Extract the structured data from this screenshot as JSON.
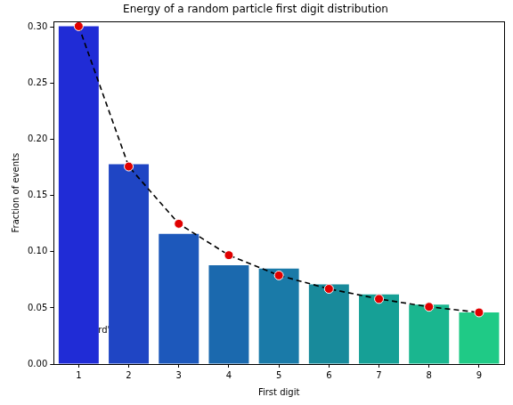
{
  "chart_data": {
    "type": "bar",
    "title": "Energy of a random particle first digit distribution",
    "x_label": "First digit",
    "y_label": "Fraction of events",
    "categories": [
      "1",
      "2",
      "3",
      "4",
      "5",
      "6",
      "7",
      "8",
      "9"
    ],
    "series": [
      {
        "type": "bar",
        "colors": [
          "#202cd6",
          "#1f45c4",
          "#1d58bb",
          "#1b69ae",
          "#1a7aa8",
          "#188a9b",
          "#16a096",
          "#1ab68f",
          "#1fca86"
        ],
        "values": [
          0.301,
          0.178,
          0.116,
          0.088,
          0.085,
          0.071,
          0.062,
          0.053,
          0.046
        ]
      },
      {
        "type": "line",
        "color": "#000000",
        "line_style": "dashed",
        "values": [
          0.301,
          0.176,
          0.125,
          0.097,
          0.079,
          0.067,
          0.058,
          0.051,
          0.046
        ]
      },
      {
        "type": "scatter",
        "name": "Benford's Law",
        "color": "#e00000",
        "marker": "circle",
        "values": [
          0.301,
          0.176,
          0.125,
          0.097,
          0.079,
          0.067,
          0.058,
          0.051,
          0.046
        ]
      }
    ],
    "ylim": [
      0,
      0.305
    ],
    "yticks": [
      {
        "value": 0,
        "label": "0.00"
      },
      {
        "value": 0.05,
        "label": "0.05"
      },
      {
        "value": 0.1,
        "label": "0.10"
      },
      {
        "value": 0.15,
        "label": "0.15"
      },
      {
        "value": 0.2,
        "label": "0.20"
      },
      {
        "value": 0.25,
        "label": "0.25"
      },
      {
        "value": 0.3,
        "label": "0.30"
      }
    ],
    "grid": false,
    "legend": "upper right"
  }
}
